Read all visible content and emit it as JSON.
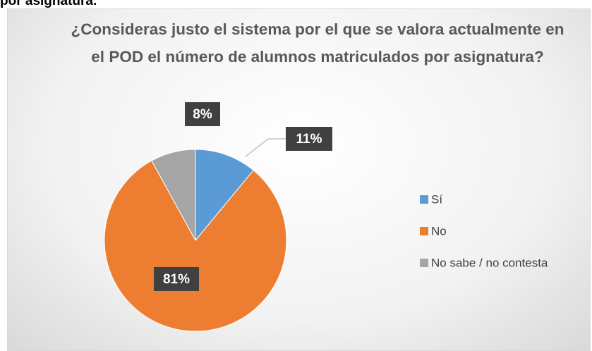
{
  "page_heading": "por asignatura.",
  "chart_data": {
    "type": "pie",
    "title": "¿Consideras justo el sistema por el que se valora actualmente en el POD el número de alumnos matriculados por asignatura?",
    "categories": [
      "Sí",
      "No",
      "No sabe / no contesta"
    ],
    "values": [
      11,
      81,
      8
    ],
    "value_labels": [
      "11%",
      "81%",
      "8%"
    ],
    "colors": [
      "#5b9bd5",
      "#ed7d31",
      "#a5a5a5"
    ],
    "legend": "right"
  }
}
